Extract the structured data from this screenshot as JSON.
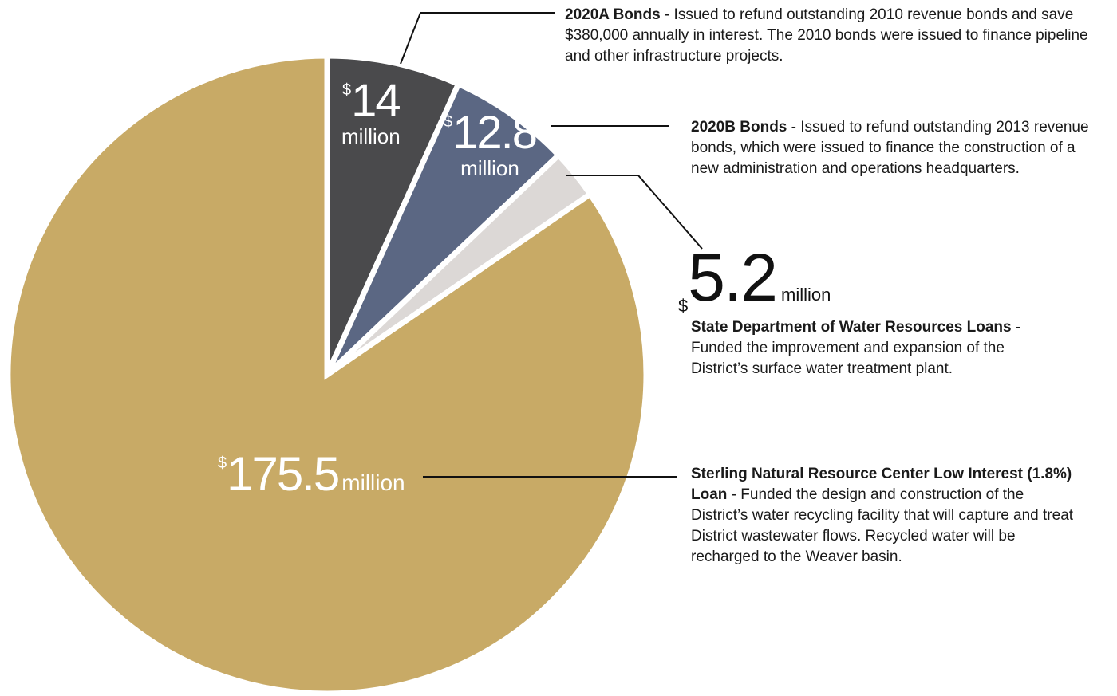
{
  "chart_data": {
    "type": "pie",
    "currency": "$",
    "unit": "million",
    "slices": [
      {
        "value": 14,
        "amount": "14",
        "color": "#4a4a4c",
        "title": "2020A Bonds",
        "description": "- Issued to refund outstanding 2010 revenue bonds and save $380,000 annually in interest. The 2010 bonds were issued to finance pipeline and other infrastructure projects."
      },
      {
        "value": 12.8,
        "amount": "12.8",
        "color": "#5b6783",
        "title": "2020B Bonds",
        "description": "- Issued to refund outstanding 2013 revenue bonds, which were issued to finance the construction of a new administration and operations headquarters."
      },
      {
        "value": 5.2,
        "amount": "5.2",
        "color": "#dcd8d6",
        "title": "State Department of Water Resources Loans",
        "description": "- Funded the improvement and expansion of the District’s surface water treatment plant."
      },
      {
        "value": 175.5,
        "amount": "175.5",
        "color": "#c8aa66",
        "title": "Sterling Natural Resource Center Low Interest (1.8%) Loan",
        "description": "- Funded the design and construction of the District’s water recycling facility that will capture and treat District wastewater flows. Recycled water will be recharged to the Weaver basin."
      }
    ]
  }
}
